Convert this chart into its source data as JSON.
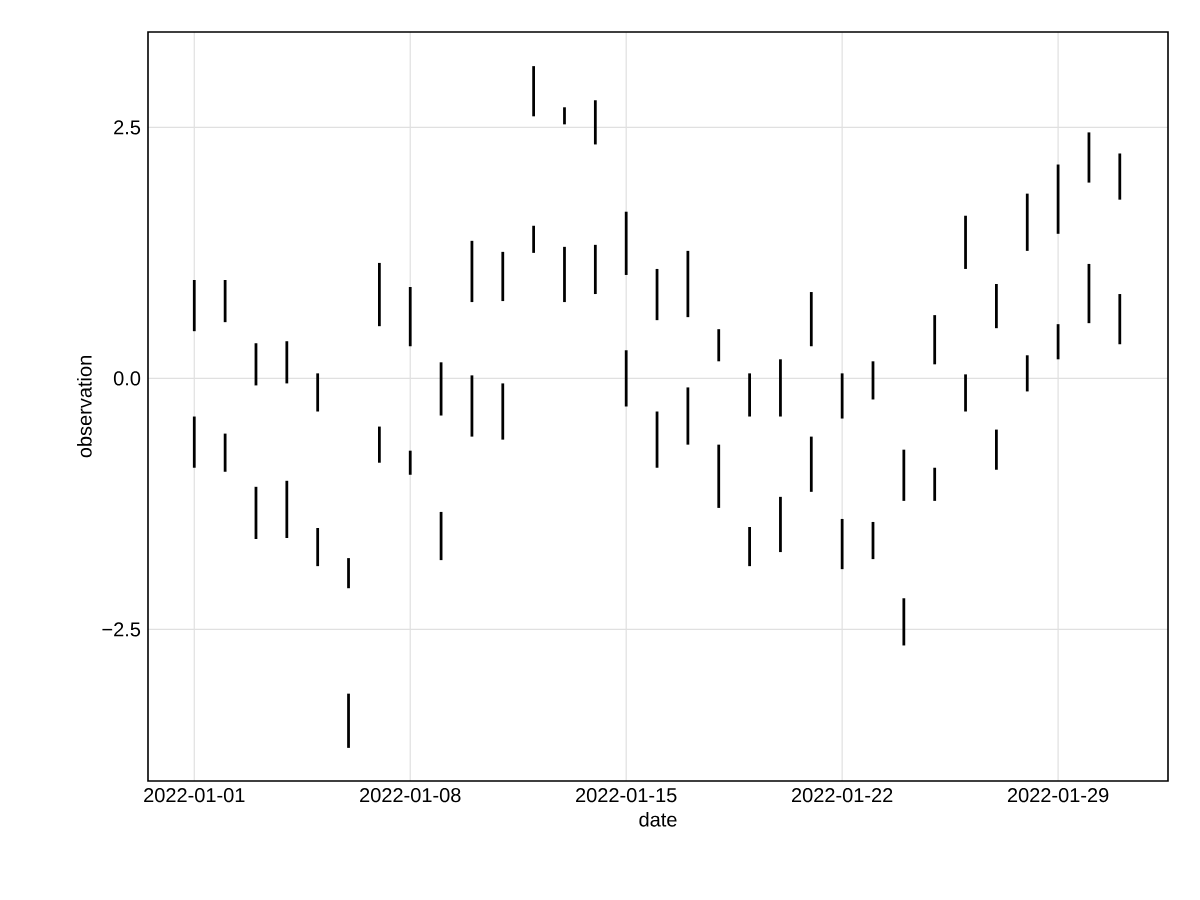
{
  "chart_data": {
    "type": "bar",
    "xlabel": "date",
    "ylabel": "observation",
    "x": [
      "2022-01-01",
      "2022-01-02",
      "2022-01-03",
      "2022-01-04",
      "2022-01-05",
      "2022-01-06",
      "2022-01-07",
      "2022-01-08",
      "2022-01-09",
      "2022-01-10",
      "2022-01-11",
      "2022-01-12",
      "2022-01-13",
      "2022-01-14",
      "2022-01-15",
      "2022-01-16",
      "2022-01-17",
      "2022-01-18",
      "2022-01-19",
      "2022-01-20",
      "2022-01-21",
      "2022-01-22",
      "2022-01-23",
      "2022-01-24",
      "2022-01-25",
      "2022-01-26",
      "2022-01-27",
      "2022-01-28",
      "2022-01-29",
      "2022-01-30",
      "2022-01-31"
    ],
    "series": [
      {
        "color": "#000000",
        "base": [
          0.47,
          0.56,
          -0.07,
          -0.05,
          -0.33,
          -2.09,
          0.52,
          0.32,
          -0.37,
          0.76,
          0.77,
          2.61,
          2.53,
          2.33,
          1.03,
          0.58,
          0.61,
          0.17,
          -0.38,
          -0.38,
          0.32,
          -0.4,
          -0.21,
          -1.22,
          0.14,
          1.09,
          0.5,
          1.27,
          1.44,
          1.95,
          1.78
        ],
        "values": [
          0.51,
          0.42,
          0.42,
          0.42,
          0.38,
          0.3,
          0.63,
          0.59,
          0.53,
          0.61,
          0.49,
          0.5,
          0.17,
          0.44,
          0.63,
          0.51,
          0.66,
          0.32,
          0.43,
          0.57,
          0.54,
          0.45,
          0.38,
          0.51,
          0.49,
          0.53,
          0.44,
          0.57,
          0.69,
          0.5,
          0.46
        ]
      },
      {
        "color": "#000000",
        "base": [
          -0.89,
          -0.93,
          -1.6,
          -1.59,
          -1.87,
          -3.68,
          -0.84,
          -0.96,
          -1.81,
          -0.58,
          -0.61,
          1.25,
          0.76,
          0.84,
          -0.28,
          -0.89,
          -0.66,
          -1.29,
          -1.87,
          -1.73,
          -1.13,
          -1.9,
          -1.8,
          -2.66,
          -1.22,
          -0.33,
          -0.91,
          -0.13,
          0.19,
          0.55,
          0.34
        ],
        "values": [
          0.51,
          0.38,
          0.52,
          0.57,
          0.38,
          0.54,
          0.36,
          0.24,
          0.48,
          0.61,
          0.56,
          0.27,
          0.55,
          0.49,
          0.56,
          0.56,
          0.57,
          0.63,
          0.39,
          0.55,
          0.55,
          0.5,
          0.37,
          0.47,
          0.33,
          0.37,
          0.4,
          0.36,
          0.35,
          0.59,
          0.5
        ]
      }
    ],
    "xlim": [
      "2021-12-30T12:00",
      "2022-02-01T13:30"
    ],
    "xticks": [
      "2022-01-01",
      "2022-01-08",
      "2022-01-15",
      "2022-01-22",
      "2022-01-29"
    ],
    "ylim": [
      -4.01,
      3.45
    ],
    "yticks": [
      {
        "value": -2.5,
        "label": "−2.5"
      },
      {
        "value": 0,
        "label": "0.0"
      },
      2.5
    ],
    "grid": true
  }
}
